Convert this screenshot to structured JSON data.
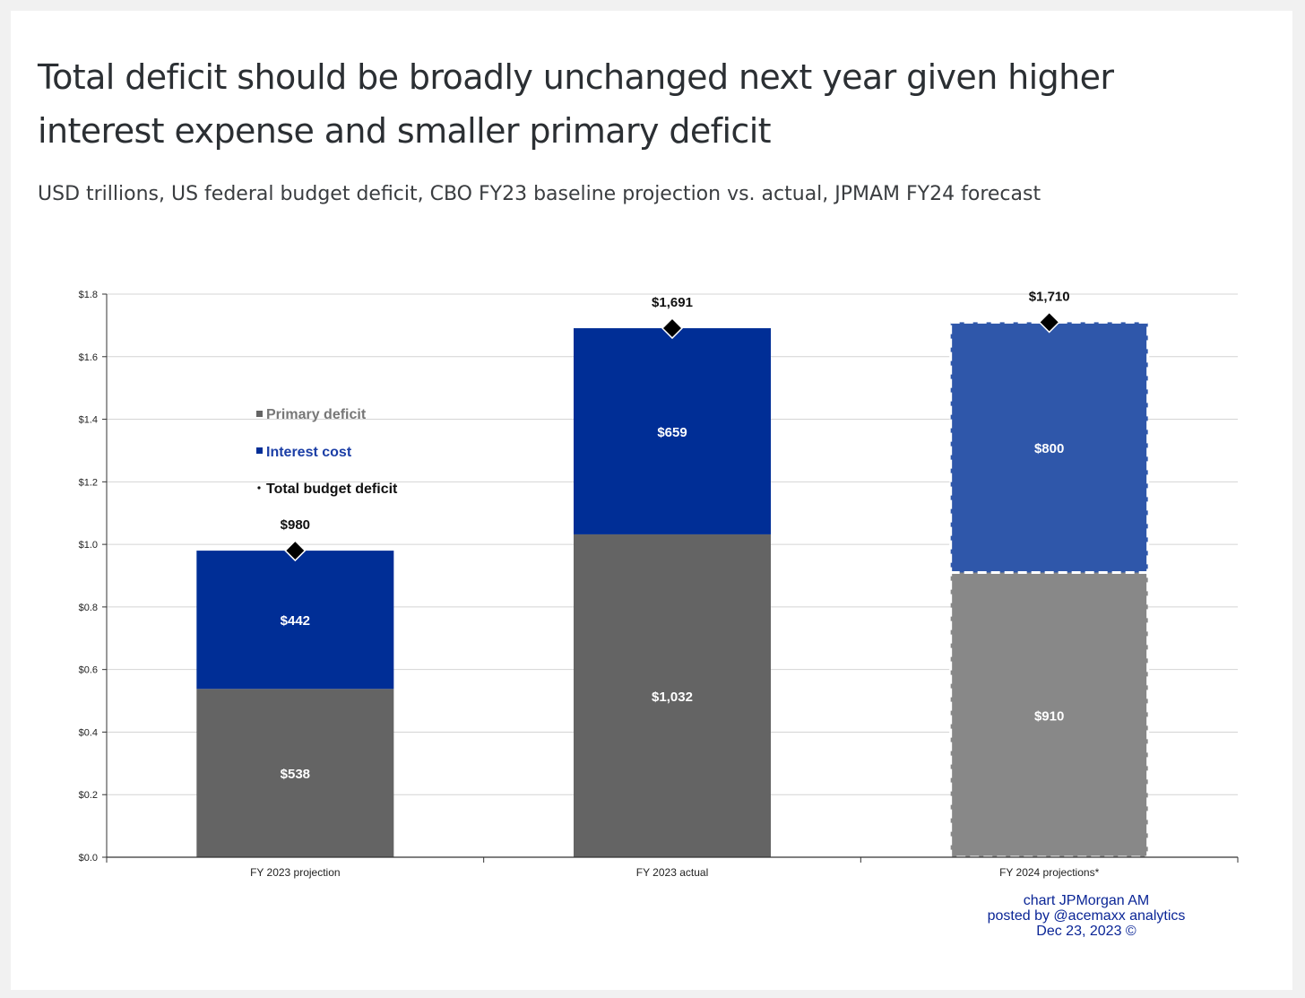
{
  "header": {
    "title": "Total deficit should be broadly unchanged next year given higher interest expense and smaller primary deficit",
    "subtitle": "USD trillions, US federal budget deficit, CBO FY23 baseline projection vs. actual, JPMAM FY24 forecast"
  },
  "credit": {
    "line1": "chart JPMorgan AM",
    "line2": "posted by @acemaxx analytics",
    "line3": "Dec 23, 2023 ©"
  },
  "chart_data": {
    "type": "bar",
    "stacked": true,
    "categories": [
      "FY 2023 projection",
      "FY 2023 actual",
      "FY 2024 projections*"
    ],
    "series": [
      {
        "name": "Primary deficit",
        "values": [
          0.538,
          1.032,
          0.91
        ],
        "labels": [
          "$538",
          "$1,032",
          "$910"
        ],
        "color": "#646464"
      },
      {
        "name": "Interest cost",
        "values": [
          0.442,
          0.659,
          0.8
        ],
        "labels": [
          "$442",
          "$659",
          "$800"
        ],
        "color": "#002e96"
      }
    ],
    "projection_colors": {
      "Primary deficit": "#888888",
      "Interest cost": "#2f57aa"
    },
    "projected": [
      false,
      false,
      true
    ],
    "total": {
      "name": "Total budget deficit",
      "values": [
        0.98,
        1.691,
        1.71
      ],
      "labels": [
        "$980",
        "$1,691",
        "$1,710"
      ]
    },
    "yticks": [
      "$0.0",
      "$0.2",
      "$0.4",
      "$0.6",
      "$0.8",
      "$1.0",
      "$1.2",
      "$1.4",
      "$1.6",
      "$1.8"
    ],
    "ylim": [
      0,
      1.8
    ],
    "grid": true,
    "legend_placement": "upper-left inside plot"
  }
}
